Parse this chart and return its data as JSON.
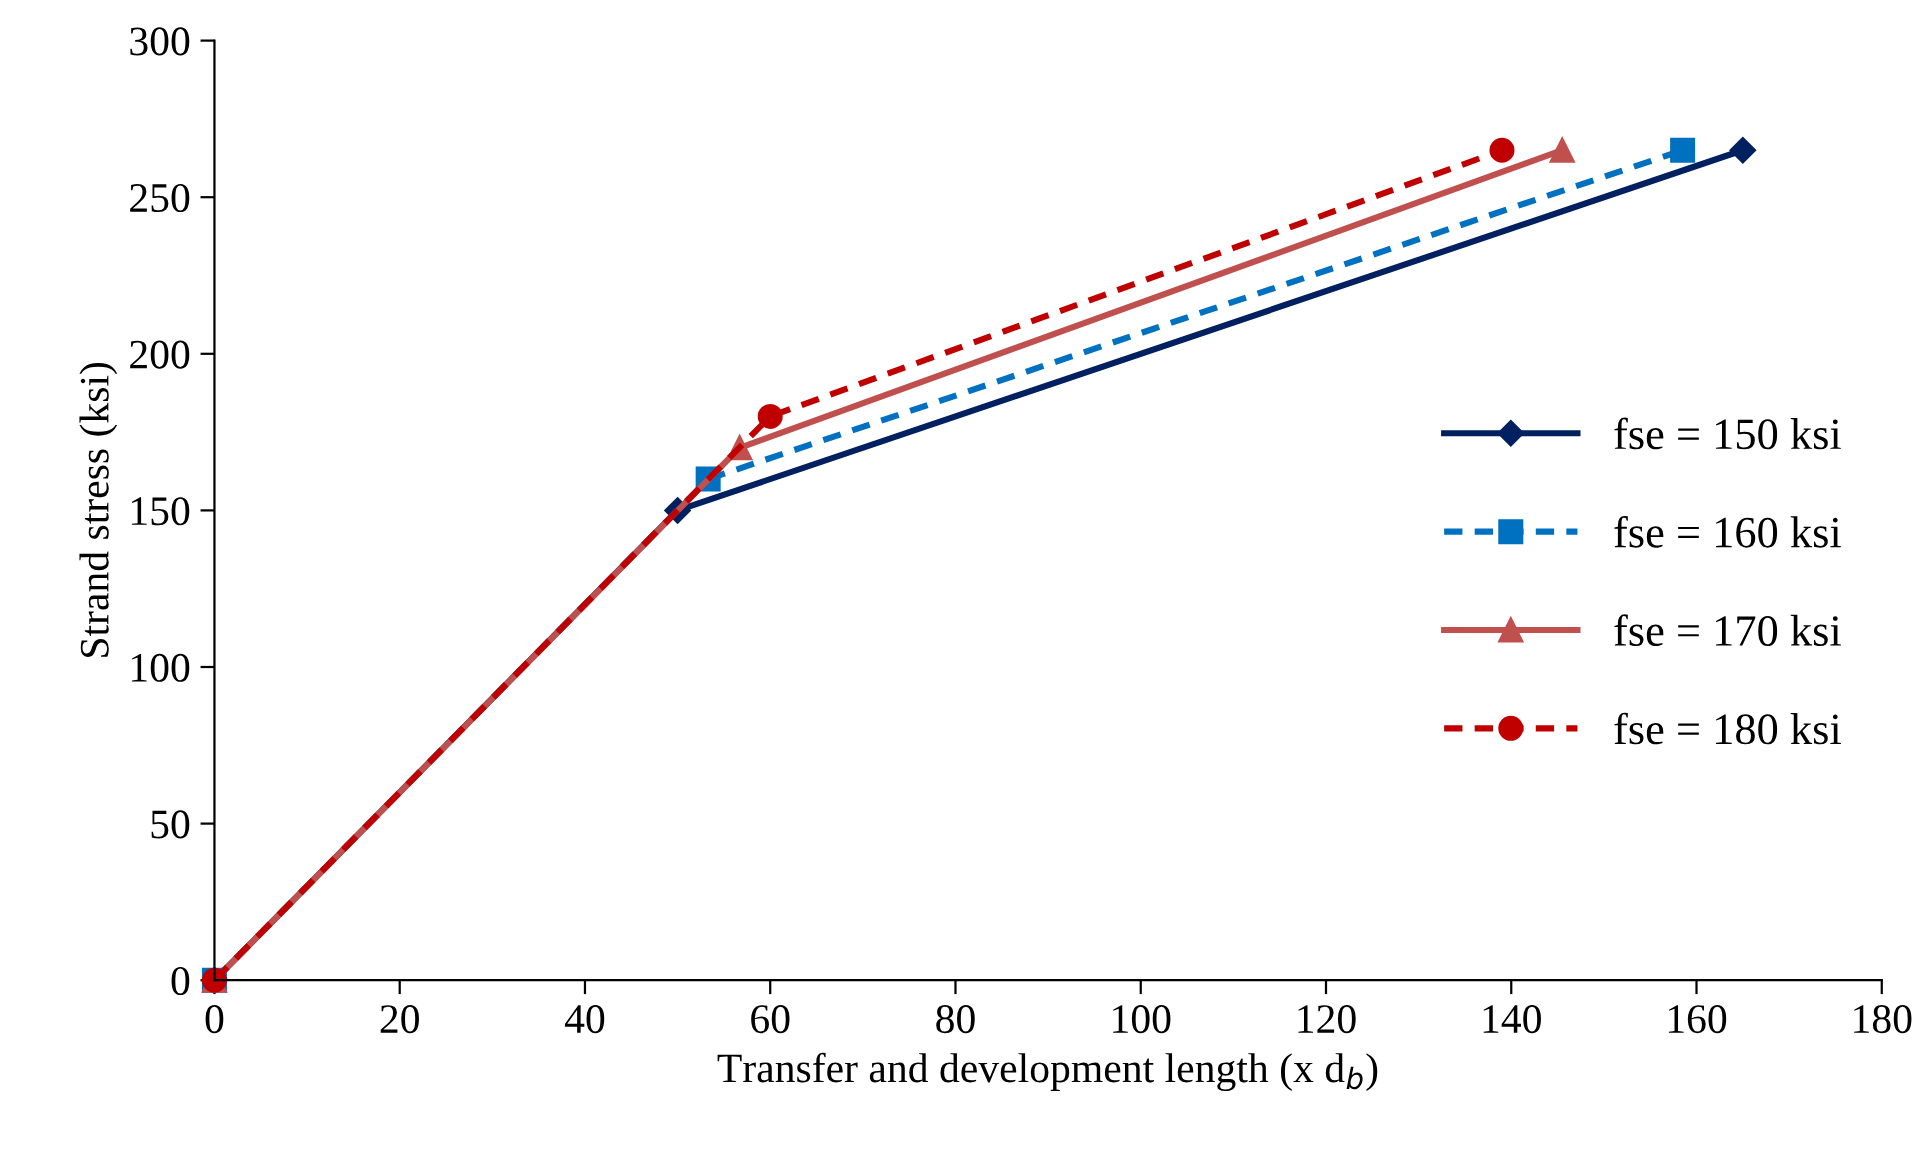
{
  "chart_data": {
    "type": "line",
    "xlabel": "Transfer and development length (x d$_{b}$)",
    "ylabel": "Strand stress (ksi)",
    "series": [
      {
        "name": "fse = 150 ksi",
        "color": "#002060",
        "x": [
          0,
          50,
          165
        ],
        "values": [
          0,
          150,
          265
        ],
        "marker": "diamond",
        "line_style": "solid"
      },
      {
        "name": "fse = 160 ksi",
        "color": "#0070c0",
        "x": [
          0,
          53.3,
          158.5
        ],
        "values": [
          0,
          160,
          265
        ],
        "marker": "square",
        "line_style": "dashed"
      },
      {
        "name": "fse = 170 ksi",
        "color": "#c0504d",
        "x": [
          0,
          56.7,
          145.5
        ],
        "values": [
          0,
          170,
          265
        ],
        "marker": "triangle",
        "line_style": "solid"
      },
      {
        "name": "fse = 180 ksi",
        "color": "#c00000",
        "x": [
          0,
          60,
          139
        ],
        "values": [
          0,
          180,
          265
        ],
        "marker": "circle",
        "line_style": "dashed"
      }
    ],
    "xlim": [
      0,
      180
    ],
    "xticks": [
      0,
      20,
      40,
      60,
      80,
      100,
      120,
      140,
      160,
      180
    ],
    "ylim": [
      0,
      300
    ],
    "yticks": [
      0,
      50,
      100,
      150,
      200,
      250,
      300
    ],
    "grid": false,
    "legend": "right"
  }
}
